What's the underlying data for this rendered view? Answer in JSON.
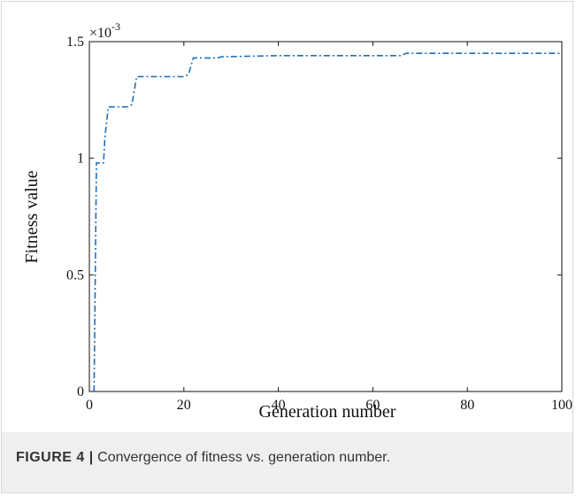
{
  "figure": {
    "caption_label": "FIGURE 4 |",
    "caption_text": " Convergence of fitness vs. generation number."
  },
  "chart_data": {
    "type": "line",
    "xlabel": "Generation number",
    "ylabel": "Fitness value",
    "y_multiplier": "×10",
    "y_exponent": "-3",
    "xlim": [
      0,
      100
    ],
    "ylim": [
      0,
      1.5
    ],
    "x_ticks": [
      "0",
      "20",
      "40",
      "60",
      "80",
      "100"
    ],
    "y_ticks": [
      "0",
      "0.5",
      "1",
      "1.5"
    ],
    "x_tick_values": [
      0,
      20,
      40,
      60,
      80,
      100
    ],
    "y_tick_values": [
      0,
      0.5,
      1,
      1.5
    ],
    "grid": false,
    "line_style": "dash-dot",
    "series": [
      {
        "color": "#1f6fb8",
        "x": [
          1,
          1.5,
          2,
          3,
          3.3,
          4,
          8,
          9,
          10,
          20,
          21,
          22,
          27,
          28,
          40,
          66,
          67,
          100
        ],
        "y": [
          0,
          0.98,
          0.98,
          0.98,
          1.09,
          1.22,
          1.22,
          1.23,
          1.35,
          1.35,
          1.36,
          1.43,
          1.43,
          1.435,
          1.44,
          1.44,
          1.45,
          1.45
        ]
      }
    ]
  }
}
